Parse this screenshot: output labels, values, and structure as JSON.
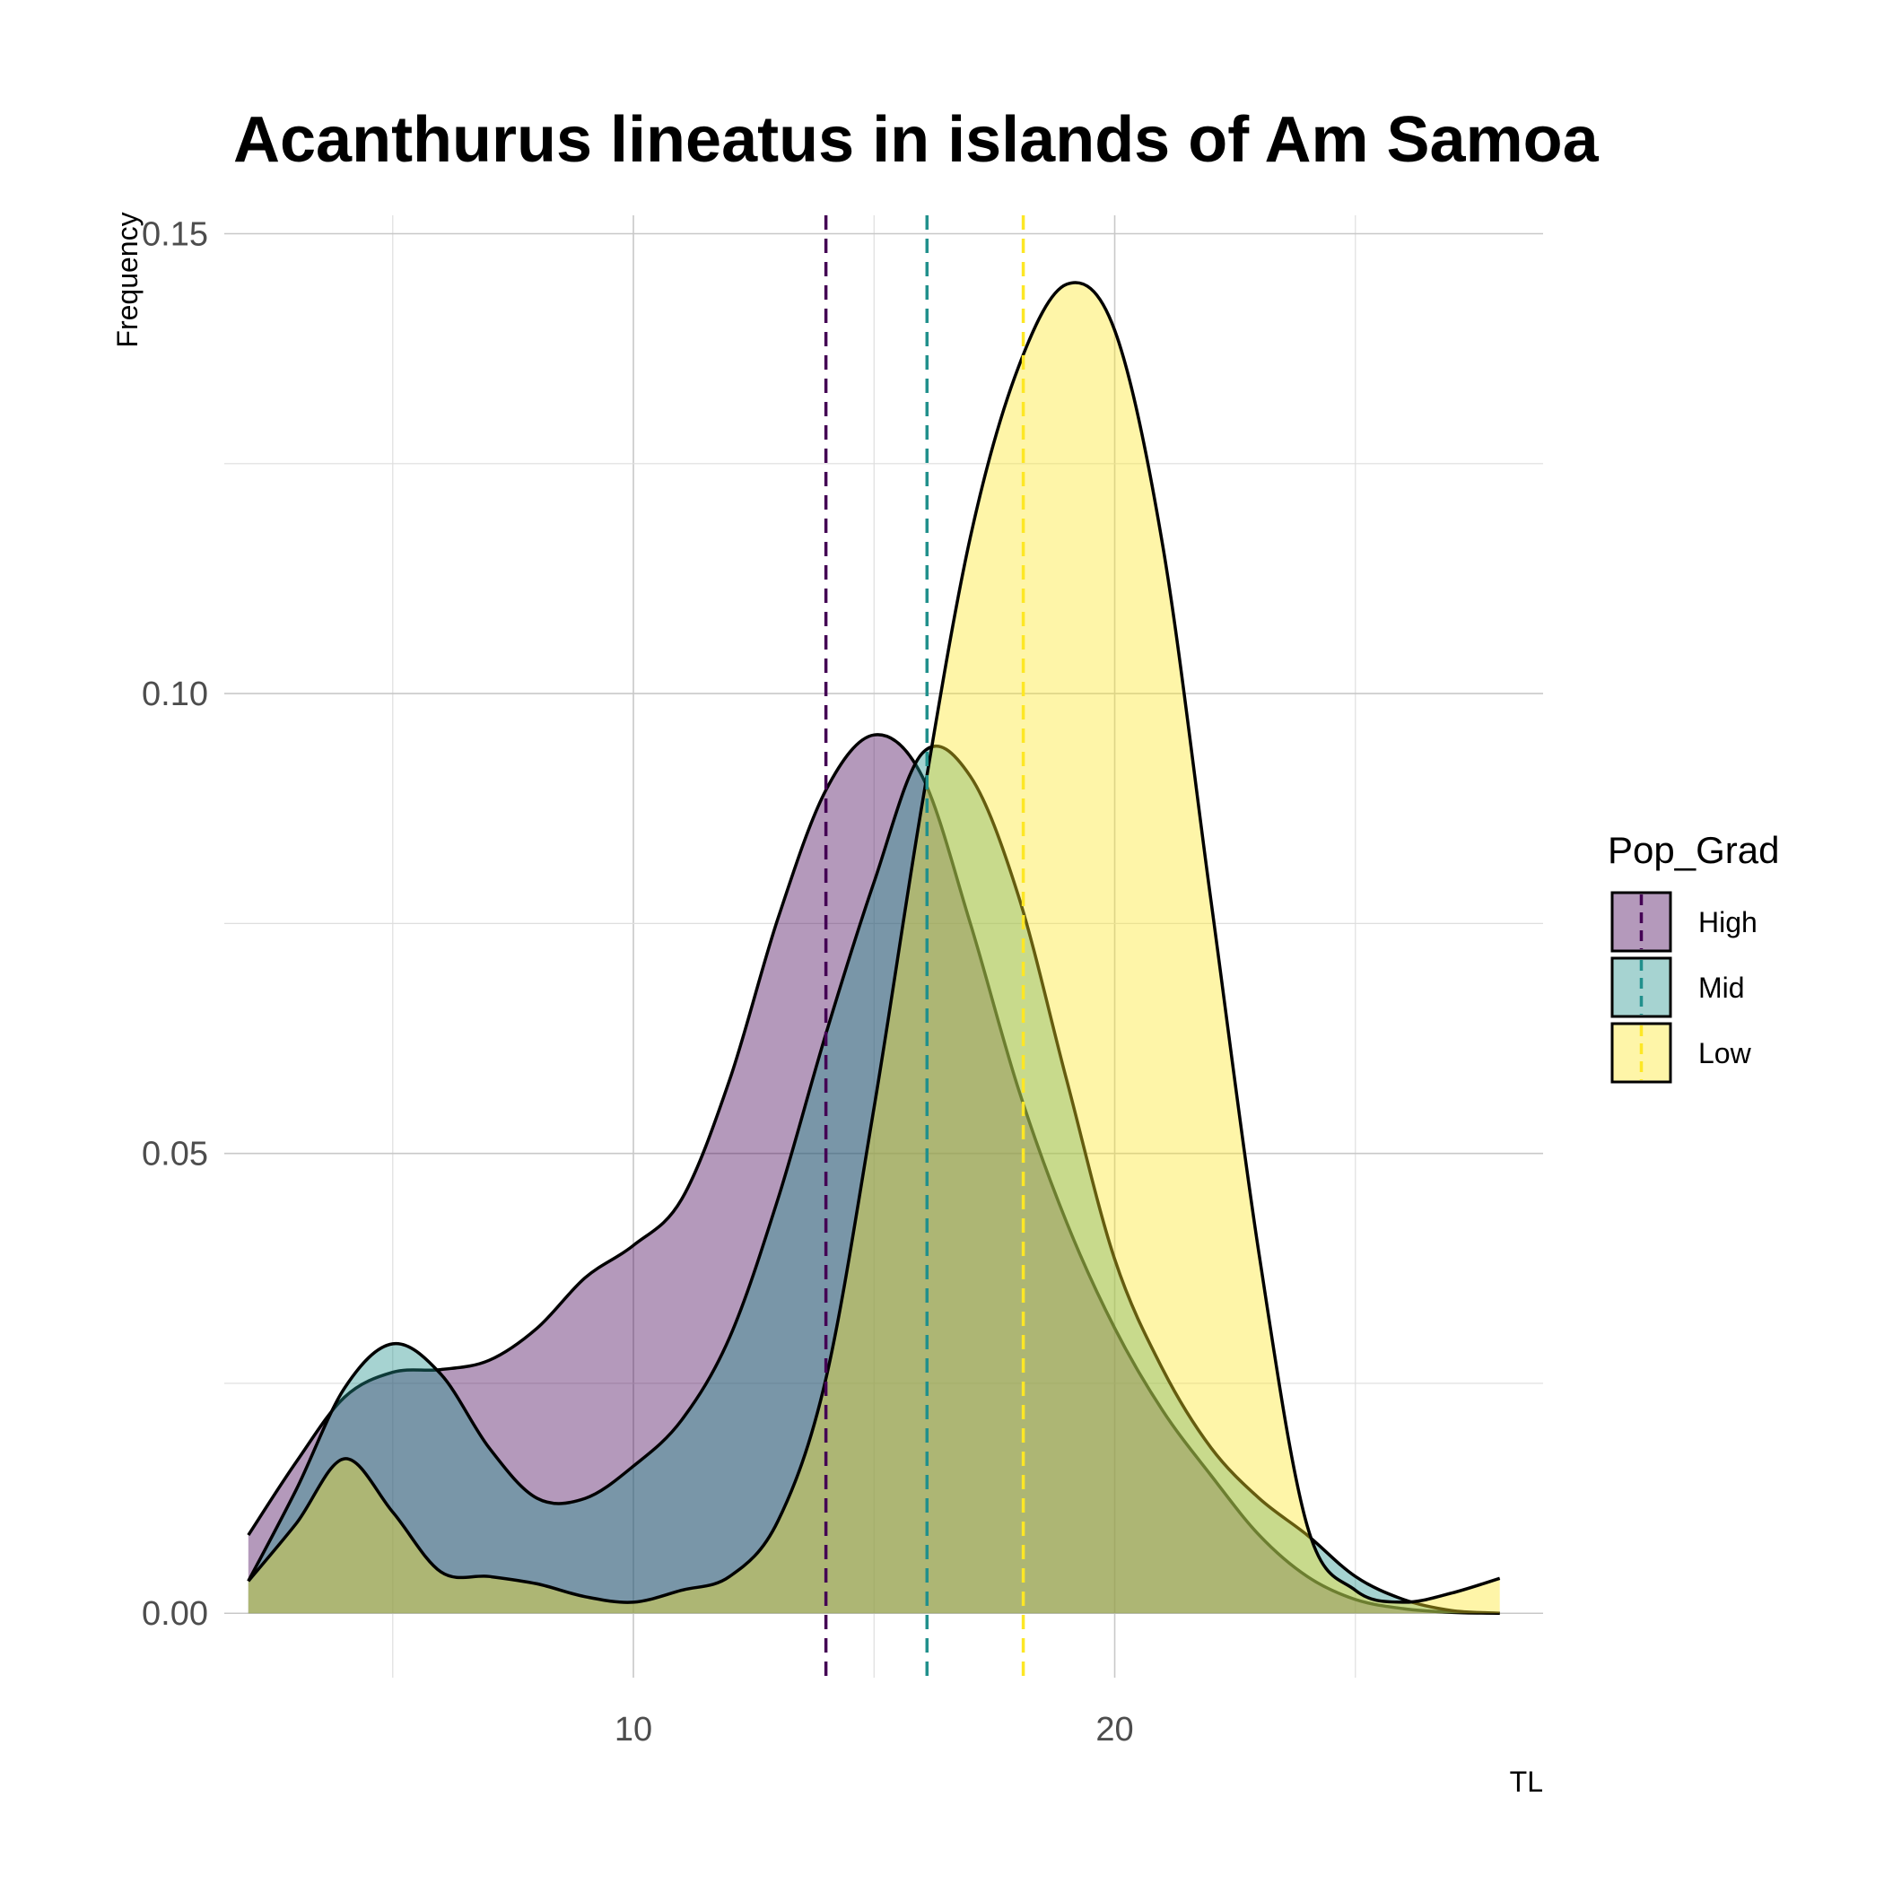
{
  "chart_data": {
    "type": "area",
    "subtype": "density",
    "title": "Acanthurus lineatus in islands of Am Samoa",
    "xlabel": "TL",
    "ylabel": "Frequency",
    "xlim": [
      1.5,
      28.9
    ],
    "ylim": [
      -0.007,
      0.152
    ],
    "x_ticks": [
      10,
      20
    ],
    "x_tick_labels": [
      "10",
      "20"
    ],
    "y_ticks": [
      0.0,
      0.05,
      0.1,
      0.15
    ],
    "y_tick_labels": [
      "0.00",
      "0.05",
      "0.10",
      "0.15"
    ],
    "grid": true,
    "legend": {
      "title": "Pop_Grad",
      "position": "right"
    },
    "series": [
      {
        "name": "High",
        "color": "#440154",
        "mean": 14.0,
        "points": [
          [
            2,
            0.0085
          ],
          [
            3,
            0.0165
          ],
          [
            4,
            0.0235
          ],
          [
            5,
            0.0262
          ],
          [
            6,
            0.0265
          ],
          [
            7,
            0.0275
          ],
          [
            8,
            0.031
          ],
          [
            9,
            0.0365
          ],
          [
            10,
            0.04
          ],
          [
            11,
            0.045
          ],
          [
            12,
            0.058
          ],
          [
            13,
            0.0755
          ],
          [
            14,
            0.0895
          ],
          [
            15,
            0.0955
          ],
          [
            16,
            0.091
          ],
          [
            17,
            0.075
          ],
          [
            18,
            0.057
          ],
          [
            19,
            0.0425
          ],
          [
            20,
            0.031
          ],
          [
            21,
            0.022
          ],
          [
            22,
            0.015
          ],
          [
            23,
            0.0085
          ],
          [
            24,
            0.004
          ],
          [
            25,
            0.0015
          ],
          [
            26,
            0.0005
          ],
          [
            27,
            0.0001
          ],
          [
            28,
            0.0
          ]
        ]
      },
      {
        "name": "Mid",
        "color": "#21908C",
        "mean": 16.1,
        "points": [
          [
            2,
            0.0035
          ],
          [
            3,
            0.0135
          ],
          [
            4,
            0.0245
          ],
          [
            5,
            0.0293
          ],
          [
            6,
            0.026
          ],
          [
            7,
            0.018
          ],
          [
            8,
            0.0125
          ],
          [
            9,
            0.0125
          ],
          [
            10,
            0.016
          ],
          [
            11,
            0.021
          ],
          [
            12,
            0.03
          ],
          [
            13,
            0.045
          ],
          [
            14,
            0.063
          ],
          [
            15,
            0.0795
          ],
          [
            16,
            0.0935
          ],
          [
            17,
            0.091
          ],
          [
            18,
            0.078
          ],
          [
            19,
            0.058
          ],
          [
            20,
            0.0385
          ],
          [
            21,
            0.0265
          ],
          [
            22,
            0.018
          ],
          [
            23,
            0.0125
          ],
          [
            24,
            0.0085
          ],
          [
            25,
            0.004
          ],
          [
            26,
            0.0015
          ],
          [
            27,
            0.0003
          ],
          [
            28,
            0.0
          ]
        ]
      },
      {
        "name": "Low",
        "color": "#FDE725",
        "mean": 18.1,
        "points": [
          [
            2,
            0.0035
          ],
          [
            3,
            0.0098
          ],
          [
            4,
            0.0168
          ],
          [
            5,
            0.011
          ],
          [
            6,
            0.0045
          ],
          [
            7,
            0.004
          ],
          [
            8,
            0.0032
          ],
          [
            9,
            0.0018
          ],
          [
            10,
            0.0012
          ],
          [
            11,
            0.0025
          ],
          [
            12,
            0.004
          ],
          [
            13,
            0.01
          ],
          [
            14,
            0.0255
          ],
          [
            15,
            0.055
          ],
          [
            16,
            0.088
          ],
          [
            17,
            0.117
          ],
          [
            18,
            0.1355
          ],
          [
            19,
            0.1445
          ],
          [
            20,
            0.1395
          ],
          [
            21,
            0.116
          ],
          [
            22,
            0.0775
          ],
          [
            23,
            0.039
          ],
          [
            24,
            0.0095
          ],
          [
            25,
            0.0025
          ],
          [
            26,
            0.0012
          ],
          [
            27,
            0.0022
          ],
          [
            28,
            0.0038
          ]
        ]
      }
    ]
  }
}
